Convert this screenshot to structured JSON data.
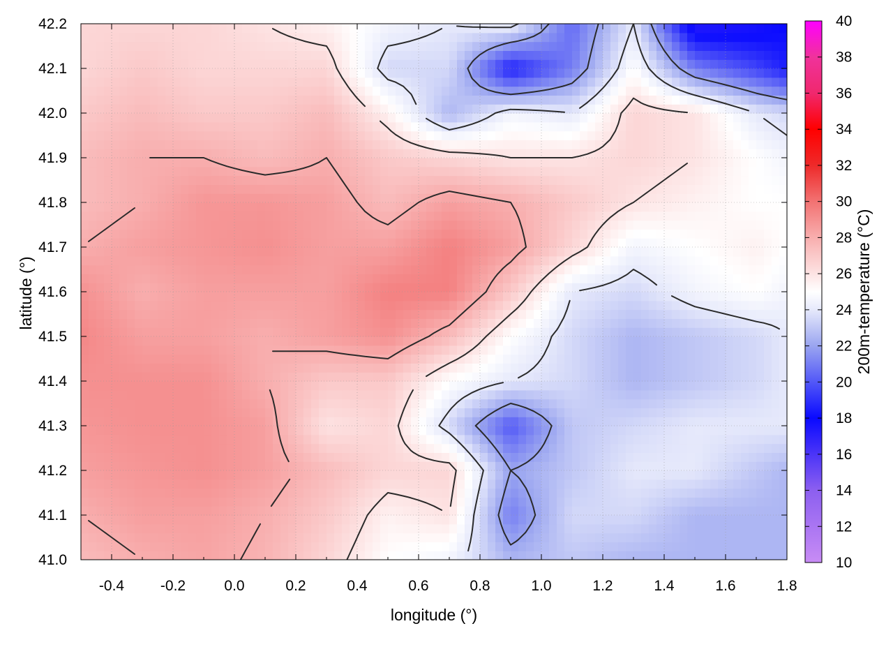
{
  "chart_data": {
    "type": "heatmap",
    "title": "",
    "xlabel": "longitude (°)",
    "ylabel": "latitude (°)",
    "colorbar_label": "200m-temperature (°C)",
    "xlim": [
      -0.5,
      1.8
    ],
    "ylim": [
      41.0,
      42.2
    ],
    "zlim": [
      10,
      40
    ],
    "x_ticks": [
      "-0.4",
      "-0.2",
      "0.0",
      "0.2",
      "0.4",
      "0.6",
      "0.8",
      "1.0",
      "1.2",
      "1.4",
      "1.6",
      "1.8"
    ],
    "x_tick_values": [
      -0.4,
      -0.2,
      0.0,
      0.2,
      0.4,
      0.6,
      0.8,
      1.0,
      1.2,
      1.4,
      1.6,
      1.8
    ],
    "y_ticks": [
      "41.0",
      "41.1",
      "41.2",
      "41.3",
      "41.4",
      "41.5",
      "41.6",
      "41.7",
      "41.8",
      "41.9",
      "42.0",
      "42.1",
      "42.2"
    ],
    "y_tick_values": [
      41.0,
      41.1,
      41.2,
      41.3,
      41.4,
      41.5,
      41.6,
      41.7,
      41.8,
      41.9,
      42.0,
      42.1,
      42.2
    ],
    "colorbar_ticks": [
      "10",
      "12",
      "14",
      "16",
      "18",
      "20",
      "22",
      "24",
      "26",
      "28",
      "30",
      "32",
      "34",
      "36",
      "38",
      "40"
    ],
    "colorbar_tick_values": [
      10,
      12,
      14,
      16,
      18,
      20,
      22,
      24,
      26,
      28,
      30,
      32,
      34,
      36,
      38,
      40
    ],
    "colormap": [
      {
        "value": 10,
        "color": "#c88cf5"
      },
      {
        "value": 14,
        "color": "#8c5ff0"
      },
      {
        "value": 18,
        "color": "#0a0aff"
      },
      {
        "value": 22,
        "color": "#9aa5f0"
      },
      {
        "value": 24,
        "color": "#e6e9fb"
      },
      {
        "value": 25,
        "color": "#ffffff"
      },
      {
        "value": 26,
        "color": "#fde3e3"
      },
      {
        "value": 28,
        "color": "#f8aeae"
      },
      {
        "value": 30,
        "color": "#f27272"
      },
      {
        "value": 32,
        "color": "#ee2a2a"
      },
      {
        "value": 34,
        "color": "#ff0000"
      },
      {
        "value": 36,
        "color": "#f0286e"
      },
      {
        "value": 38,
        "color": "#f0329b"
      },
      {
        "value": 40,
        "color": "#ff00ff"
      }
    ],
    "grid": true,
    "field_grid": {
      "x": [
        -0.5,
        -0.3,
        -0.1,
        0.1,
        0.3,
        0.5,
        0.7,
        0.9,
        1.1,
        1.3,
        1.5,
        1.7,
        1.8
      ],
      "y": [
        41.0,
        41.1,
        41.2,
        41.3,
        41.4,
        41.5,
        41.6,
        41.7,
        41.8,
        41.9,
        42.0,
        42.1,
        42.2
      ],
      "z": [
        [
          27.5,
          28.0,
          28.3,
          27.8,
          26.5,
          25.0,
          24.5,
          22.5,
          23.0,
          22.5,
          22.5,
          22.5,
          22.5
        ],
        [
          28.0,
          28.5,
          28.5,
          28.0,
          27.0,
          25.5,
          26.0,
          21.0,
          23.5,
          23.5,
          22.5,
          22.5,
          22.5
        ],
        [
          28.5,
          28.8,
          29.0,
          28.5,
          27.5,
          26.5,
          26.5,
          22.0,
          23.0,
          24.0,
          24.0,
          23.0,
          22.5
        ],
        [
          28.8,
          29.0,
          29.0,
          28.5,
          26.0,
          26.5,
          23.5,
          20.0,
          23.0,
          23.5,
          24.0,
          24.0,
          24.0
        ],
        [
          29.0,
          29.0,
          29.0,
          28.0,
          27.0,
          27.0,
          25.0,
          24.0,
          23.5,
          22.5,
          23.0,
          23.5,
          24.0
        ],
        [
          29.3,
          28.5,
          28.5,
          28.0,
          28.5,
          29.0,
          27.5,
          25.0,
          23.5,
          22.5,
          23.0,
          23.5,
          24.0
        ],
        [
          29.0,
          28.0,
          28.5,
          28.5,
          28.5,
          29.5,
          29.5,
          27.0,
          24.0,
          23.5,
          24.5,
          25.0,
          24.5
        ],
        [
          28.0,
          28.5,
          28.8,
          29.0,
          28.5,
          28.5,
          29.5,
          28.5,
          26.5,
          24.5,
          25.0,
          25.5,
          25.0
        ],
        [
          27.5,
          28.0,
          28.8,
          28.8,
          28.5,
          27.5,
          28.5,
          28.0,
          27.0,
          26.0,
          25.5,
          25.0,
          25.0
        ],
        [
          27.5,
          28.0,
          28.0,
          27.5,
          28.0,
          27.0,
          26.5,
          26.0,
          26.0,
          26.5,
          26.0,
          25.0,
          24.5
        ],
        [
          27.0,
          27.5,
          27.0,
          27.0,
          27.5,
          25.5,
          22.5,
          24.5,
          24.0,
          26.5,
          26.0,
          24.0,
          23.5
        ],
        [
          26.5,
          27.0,
          26.5,
          26.5,
          26.5,
          23.5,
          23.5,
          18.5,
          21.0,
          25.0,
          21.0,
          19.5,
          18.5
        ],
        [
          26.5,
          26.5,
          26.5,
          26.0,
          25.5,
          24.5,
          24.0,
          24.5,
          20.5,
          24.0,
          17.0,
          17.5,
          18.0
        ]
      ]
    },
    "contour_levels": [
      22,
      24,
      26,
      28
    ],
    "contour_color": "#2a2a2a"
  }
}
